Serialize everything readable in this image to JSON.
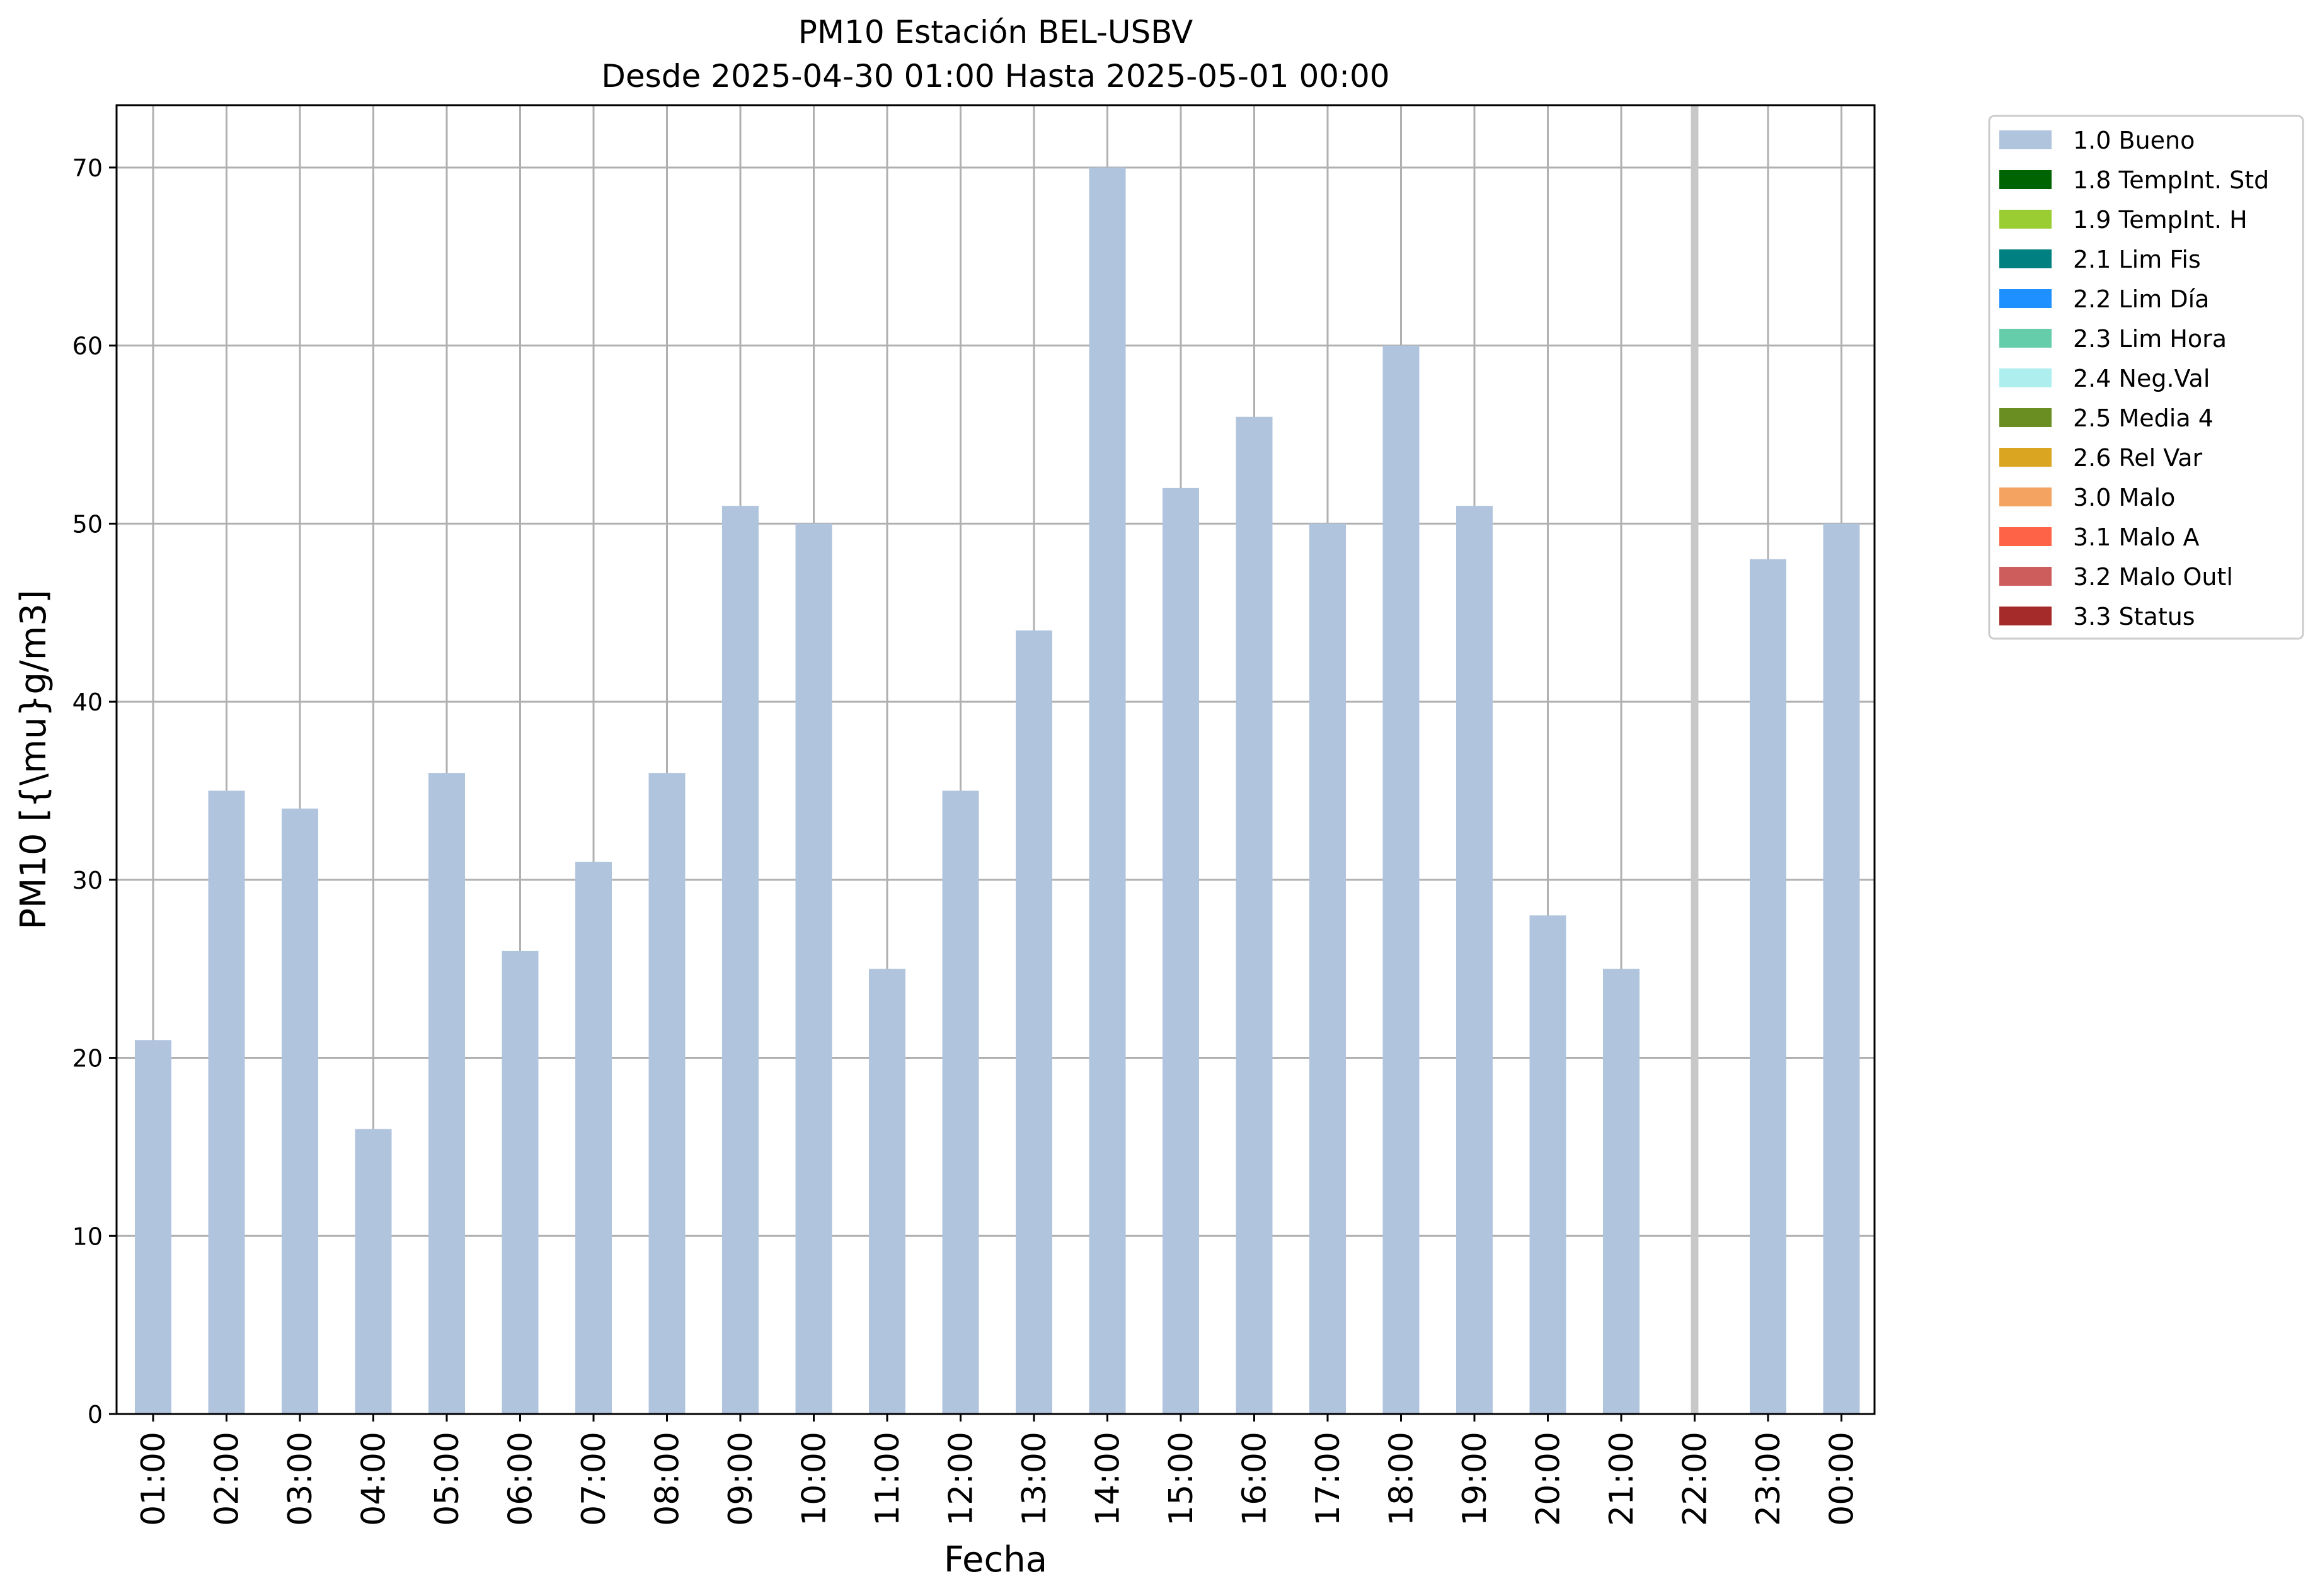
{
  "chart_data": {
    "type": "bar",
    "title": "PM10 Estación BEL-USBV",
    "subtitle": "Desde 2025-04-30 01:00 Hasta 2025-05-01 00:00",
    "xlabel": "Fecha",
    "ylabel": "PM10 [{\\mu}g/m3]",
    "ylim": [
      0,
      73.5
    ],
    "yticks": [
      0,
      10,
      20,
      30,
      40,
      50,
      60,
      70
    ],
    "grid": true,
    "legend_position": "outside top-right",
    "categories": [
      "01:00",
      "02:00",
      "03:00",
      "04:00",
      "05:00",
      "06:00",
      "07:00",
      "08:00",
      "09:00",
      "10:00",
      "11:00",
      "12:00",
      "13:00",
      "14:00",
      "15:00",
      "16:00",
      "17:00",
      "18:00",
      "19:00",
      "20:00",
      "21:00",
      "22:00",
      "23:00",
      "00:00"
    ],
    "series": [
      {
        "name": "1.0 Bueno",
        "color": "#b0c4de",
        "values": [
          21,
          35,
          34,
          16,
          36,
          26,
          31,
          36,
          51,
          50,
          25,
          35,
          44,
          70,
          52,
          56,
          50,
          60,
          51,
          28,
          25,
          null,
          48,
          50
        ]
      }
    ],
    "missing_marker_category": "22:00",
    "legend": [
      {
        "label": "1.0 Bueno",
        "color": "#b0c4de"
      },
      {
        "label": "1.8 TempInt. Std",
        "color": "#006400"
      },
      {
        "label": "1.9 TempInt. H",
        "color": "#9acd32"
      },
      {
        "label": "2.1 Lim Fis",
        "color": "#008080"
      },
      {
        "label": "2.2 Lim Día",
        "color": "#1e90ff"
      },
      {
        "label": "2.3 Lim Hora",
        "color": "#66cdaa"
      },
      {
        "label": "2.4 Neg.Val",
        "color": "#afeeee"
      },
      {
        "label": "2.5 Media 4",
        "color": "#6b8e23"
      },
      {
        "label": "2.6 Rel Var",
        "color": "#daa520"
      },
      {
        "label": "3.0 Malo",
        "color": "#f4a460"
      },
      {
        "label": "3.1 Malo A",
        "color": "#ff6347"
      },
      {
        "label": "3.2 Malo Outl",
        "color": "#cd5c5c"
      },
      {
        "label": "3.3 Status",
        "color": "#a52a2a"
      }
    ]
  }
}
